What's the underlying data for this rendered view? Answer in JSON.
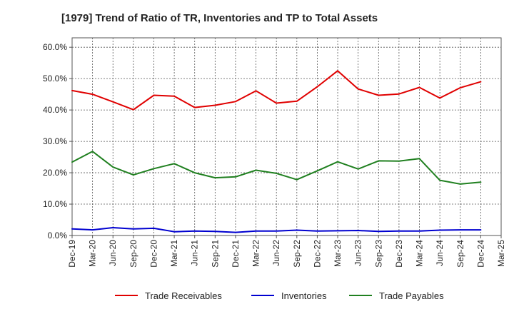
{
  "chart_data": {
    "type": "line",
    "title": "[1979]  Trend of Ratio of TR, Inventories and TP to Total Assets",
    "xlabel": "",
    "ylabel": "",
    "ylim": [
      0,
      63
    ],
    "yticks": [
      0,
      10,
      20,
      30,
      40,
      50,
      60
    ],
    "ytick_labels": [
      "0.0%",
      "10.0%",
      "20.0%",
      "30.0%",
      "40.0%",
      "50.0%",
      "60.0%"
    ],
    "x": [
      "Dec-19",
      "Mar-20",
      "Jun-20",
      "Sep-20",
      "Dec-20",
      "Mar-21",
      "Jun-21",
      "Sep-21",
      "Dec-21",
      "Mar-22",
      "Jun-22",
      "Sep-22",
      "Dec-22",
      "Mar-23",
      "Jun-23",
      "Sep-23",
      "Dec-23",
      "Mar-24",
      "Jun-24",
      "Sep-24",
      "Dec-24",
      "Mar-25"
    ],
    "grid": true,
    "legend_position": "bottom",
    "series": [
      {
        "name": "Trade Receivables",
        "color": "#e00000",
        "values": [
          46.2,
          45.0,
          42.6,
          40.1,
          44.7,
          44.4,
          40.8,
          41.5,
          42.7,
          46.1,
          42.2,
          42.8,
          47.4,
          52.5,
          46.7,
          44.7,
          45.1,
          47.2,
          43.8,
          47.1,
          49.0,
          null
        ]
      },
      {
        "name": "Inventories",
        "color": "#0000d0",
        "values": [
          2.1,
          1.8,
          2.5,
          2.1,
          2.3,
          1.2,
          1.4,
          1.3,
          1.0,
          1.4,
          1.4,
          1.7,
          1.4,
          1.5,
          1.6,
          1.3,
          1.4,
          1.4,
          1.7,
          1.8,
          1.8,
          null
        ]
      },
      {
        "name": "Trade Payables",
        "color": "#208020",
        "values": [
          23.4,
          26.8,
          21.8,
          19.3,
          21.3,
          22.9,
          20.0,
          18.4,
          18.7,
          20.8,
          19.8,
          17.8,
          20.6,
          23.5,
          21.2,
          23.8,
          23.7,
          24.5,
          17.6,
          16.4,
          17.0,
          null
        ]
      }
    ]
  }
}
